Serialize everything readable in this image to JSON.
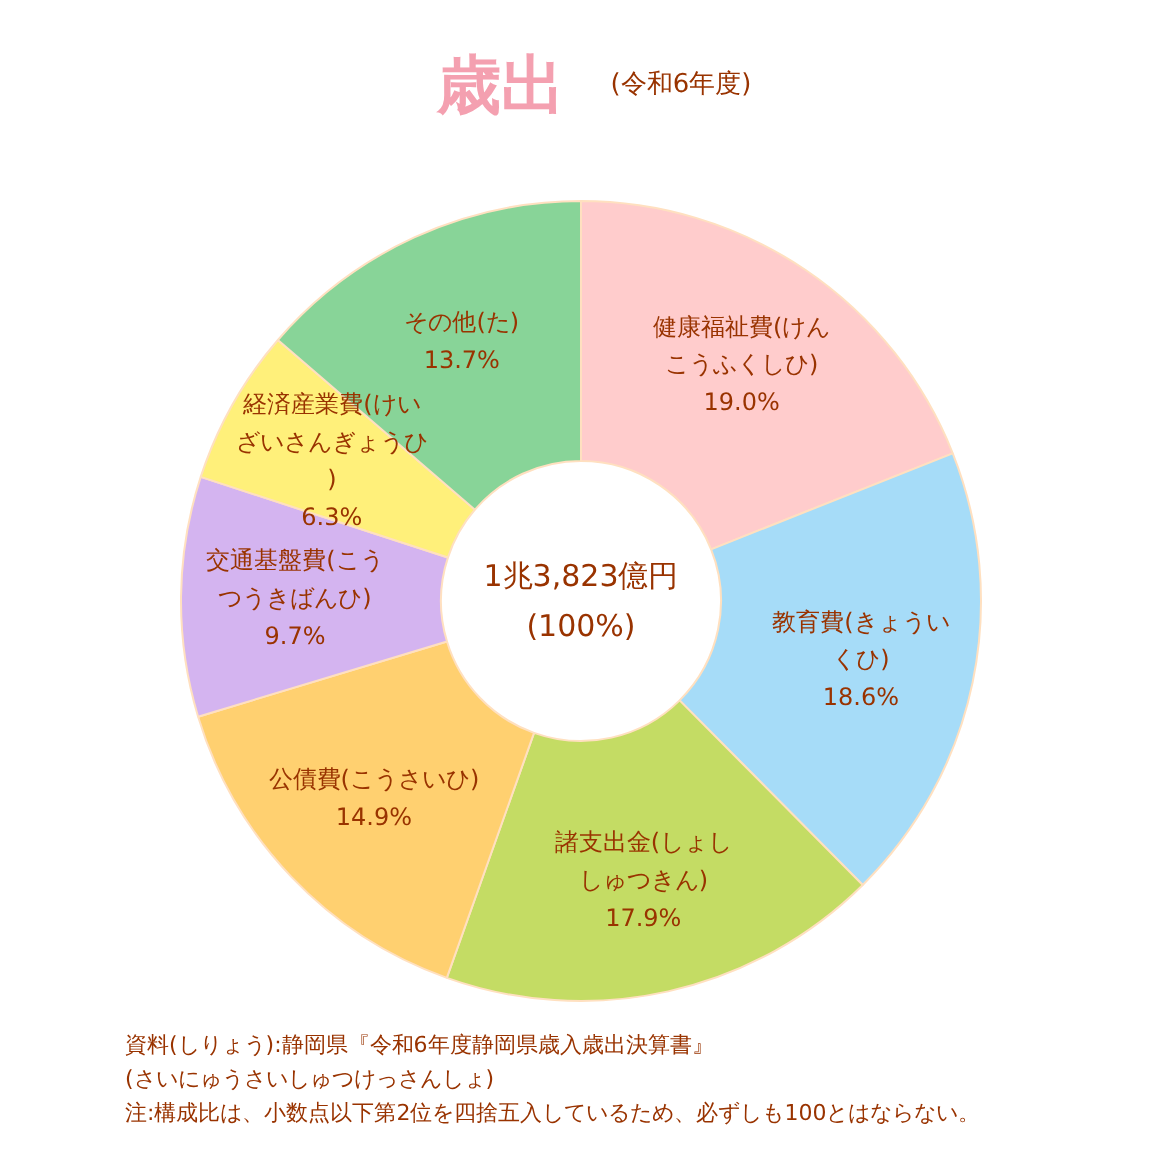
{
  "chart_data": {
    "type": "donut",
    "title": "歳出",
    "subtitle": "(令和6年度)",
    "categories": [
      "健康福祉費(けんこうふくしひ)",
      "教育費(きょういくひ)",
      "諸支出金(しょししゅつきん)",
      "公債費(こうさいひ)",
      "交通基盤費(こうつうきばんひ)",
      "経済産業費(けいざいさんぎょうひ)",
      "その他(た)"
    ],
    "values": [
      19.0,
      18.6,
      17.9,
      14.9,
      9.7,
      6.3,
      13.7
    ],
    "colors": [
      "#ffcccc",
      "#a6dcf8",
      "#c4dc64",
      "#ffd070",
      "#d4b4f0",
      "#fff07a",
      "#88d498"
    ],
    "value_labels": [
      "19.0%",
      "18.6%",
      "17.9%",
      "14.9%",
      "9.7%",
      "6.3%",
      "13.7%"
    ],
    "annotations": [
      "1兆3,823億円\n(100%)",
      "資料(しりょう):静岡県『令和6年度静岡県歳入歳出決算書』",
      "(さいにゅうさいしゅつけっさんしょ)",
      "注:構成比は、小数点以下第2位を四捨五入しているため、必ずしも100とはならない。"
    ]
  }
}
